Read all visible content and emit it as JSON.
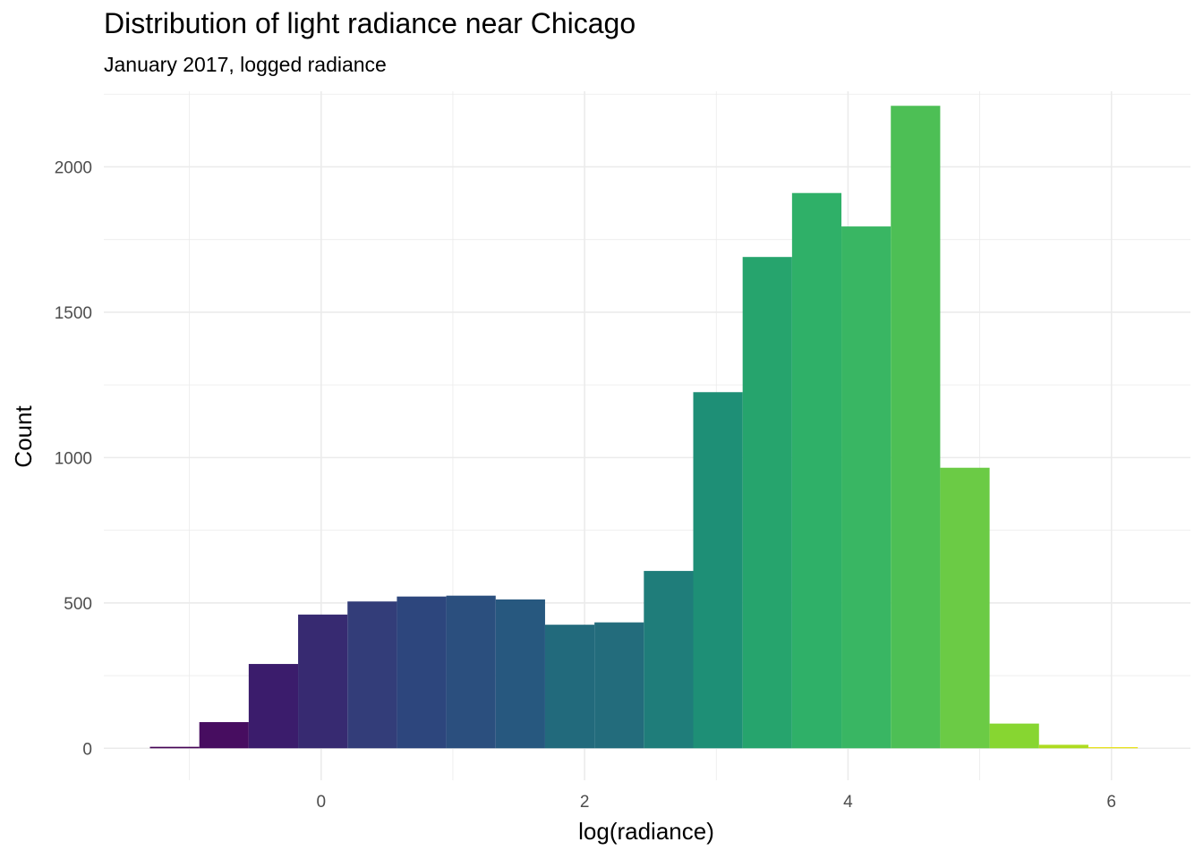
{
  "chart_data": {
    "type": "bar",
    "title": "Distribution of light radiance near Chicago",
    "subtitle": "January 2017, logged radiance",
    "xlabel": "log(radiance)",
    "ylabel": "Count",
    "xlim": [
      -1.65,
      6.6
    ],
    "ylim": [
      -110,
      2260
    ],
    "x_ticks": [
      0,
      2,
      4,
      6
    ],
    "y_ticks": [
      0,
      500,
      1000,
      1500,
      2000
    ],
    "grid": true,
    "legend": "none",
    "bins": {
      "x_start": [
        -1.3,
        -0.925,
        -0.55,
        -0.175,
        0.2,
        0.575,
        0.95,
        1.325,
        1.7,
        2.075,
        2.45,
        2.825,
        3.2,
        3.575,
        3.95,
        4.325,
        4.7,
        5.075,
        5.45,
        5.825
      ],
      "x_end": [
        -0.925,
        -0.55,
        -0.175,
        0.2,
        0.575,
        0.95,
        1.325,
        1.7,
        2.075,
        2.45,
        2.825,
        3.2,
        3.575,
        3.95,
        4.325,
        4.7,
        5.075,
        5.45,
        5.825,
        6.2
      ],
      "counts": [
        5,
        90,
        290,
        460,
        505,
        522,
        525,
        512,
        425,
        433,
        610,
        1225,
        1690,
        1910,
        1795,
        2210,
        965,
        85,
        12,
        4
      ],
      "colors": [
        "#440154",
        "#470d60",
        "#3b1c6c",
        "#372a71",
        "#333d79",
        "#2d467d",
        "#2b4f7e",
        "#27587f",
        "#226a7c",
        "#236c7c",
        "#1f7d7a",
        "#1e8f76",
        "#26a46d",
        "#2fb068",
        "#39b663",
        "#4dbf55",
        "#6bcb45",
        "#87d631",
        "#aedc20",
        "#e7e21b"
      ]
    }
  }
}
